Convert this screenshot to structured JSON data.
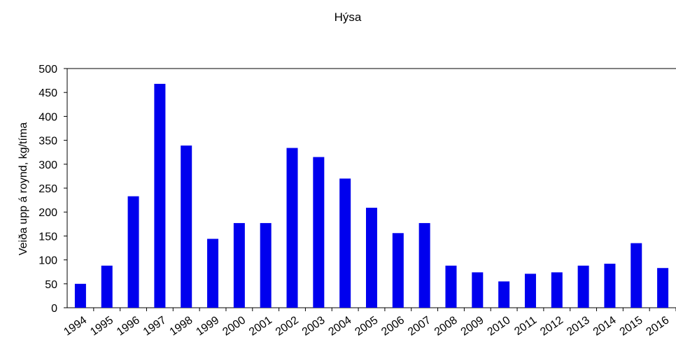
{
  "chart_data": {
    "type": "bar",
    "title": "Hýsa",
    "xlabel": "",
    "ylabel": "Veiða upp á roynd, kg/tíma",
    "categories": [
      "1994",
      "1995",
      "1996",
      "1997",
      "1998",
      "1999",
      "2000",
      "2001",
      "2002",
      "2003",
      "2004",
      "2005",
      "2006",
      "2007",
      "2008",
      "2009",
      "2010",
      "2011",
      "2012",
      "2013",
      "2014",
      "2015",
      "2016"
    ],
    "values": [
      50,
      88,
      233,
      468,
      339,
      144,
      177,
      177,
      334,
      315,
      270,
      209,
      156,
      177,
      88,
      74,
      55,
      71,
      74,
      88,
      92,
      135,
      83
    ],
    "ylim": [
      0,
      500
    ],
    "yticks": [
      0,
      50,
      100,
      150,
      200,
      250,
      300,
      350,
      400,
      450,
      500
    ],
    "grid": false,
    "colors": {
      "bar": "#0000ee",
      "axis": "#000000"
    }
  }
}
